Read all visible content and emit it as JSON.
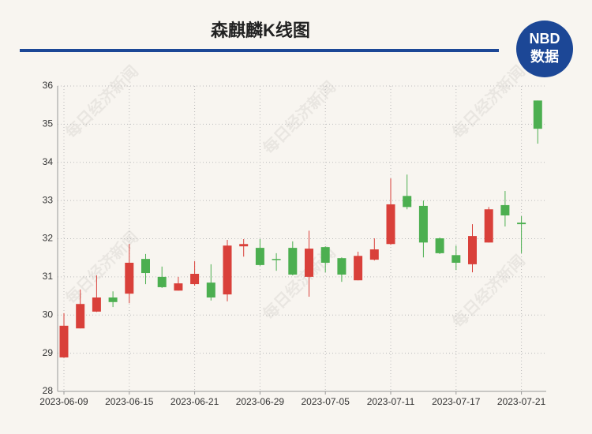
{
  "chart_data": {
    "type": "candlestick",
    "title": "森麒麟K线图",
    "logo": {
      "top": "NBD",
      "bottom": "数据"
    },
    "watermark": "每日经济新闻",
    "categories": [
      "2023-06-09",
      null,
      null,
      null,
      "2023-06-15",
      null,
      null,
      null,
      "2023-06-21",
      null,
      null,
      null,
      "2023-06-29",
      null,
      null,
      null,
      "2023-07-05",
      null,
      null,
      null,
      "2023-07-11",
      null,
      null,
      null,
      "2023-07-17",
      null,
      null,
      null,
      "2023-07-21",
      null
    ],
    "open": [
      28.89,
      29.65,
      30.09,
      30.46,
      30.56,
      31.47,
      31.0,
      30.64,
      30.81,
      30.85,
      30.54,
      31.8,
      31.76,
      31.47,
      31.76,
      31.0,
      31.78,
      31.49,
      30.91,
      31.45,
      31.86,
      33.12,
      32.86,
      32.01,
      31.57,
      31.33,
      31.9,
      32.88,
      32.42,
      35.62
    ],
    "high": [
      30.05,
      30.67,
      31.04,
      30.62,
      31.86,
      31.6,
      31.27,
      31.0,
      31.41,
      31.33,
      31.97,
      31.99,
      31.99,
      31.62,
      31.93,
      32.21,
      31.8,
      31.51,
      31.66,
      32.01,
      33.58,
      33.68,
      33.0,
      32.03,
      31.82,
      32.38,
      32.83,
      33.25,
      32.59,
      35.62
    ],
    "low": [
      28.88,
      29.65,
      30.08,
      30.21,
      30.31,
      30.81,
      30.71,
      30.64,
      30.77,
      30.38,
      30.36,
      31.53,
      31.29,
      31.16,
      31.04,
      30.48,
      31.12,
      30.87,
      30.91,
      31.43,
      31.84,
      32.77,
      31.51,
      31.6,
      31.18,
      31.12,
      31.9,
      32.32,
      31.62,
      34.49
    ],
    "close": [
      29.72,
      30.29,
      30.46,
      30.34,
      31.37,
      31.1,
      30.73,
      30.83,
      31.08,
      30.46,
      31.82,
      31.86,
      31.31,
      31.45,
      31.06,
      31.74,
      31.37,
      31.06,
      31.55,
      31.72,
      32.9,
      32.83,
      31.9,
      31.62,
      31.37,
      32.07,
      32.77,
      32.61,
      32.38,
      34.88
    ],
    "up_color": "#d9403a",
    "down_color": "#4caf50",
    "ylim": [
      28,
      36
    ],
    "yticks": [
      28,
      29,
      30,
      31,
      32,
      33,
      34,
      35,
      36
    ],
    "grid": true
  }
}
